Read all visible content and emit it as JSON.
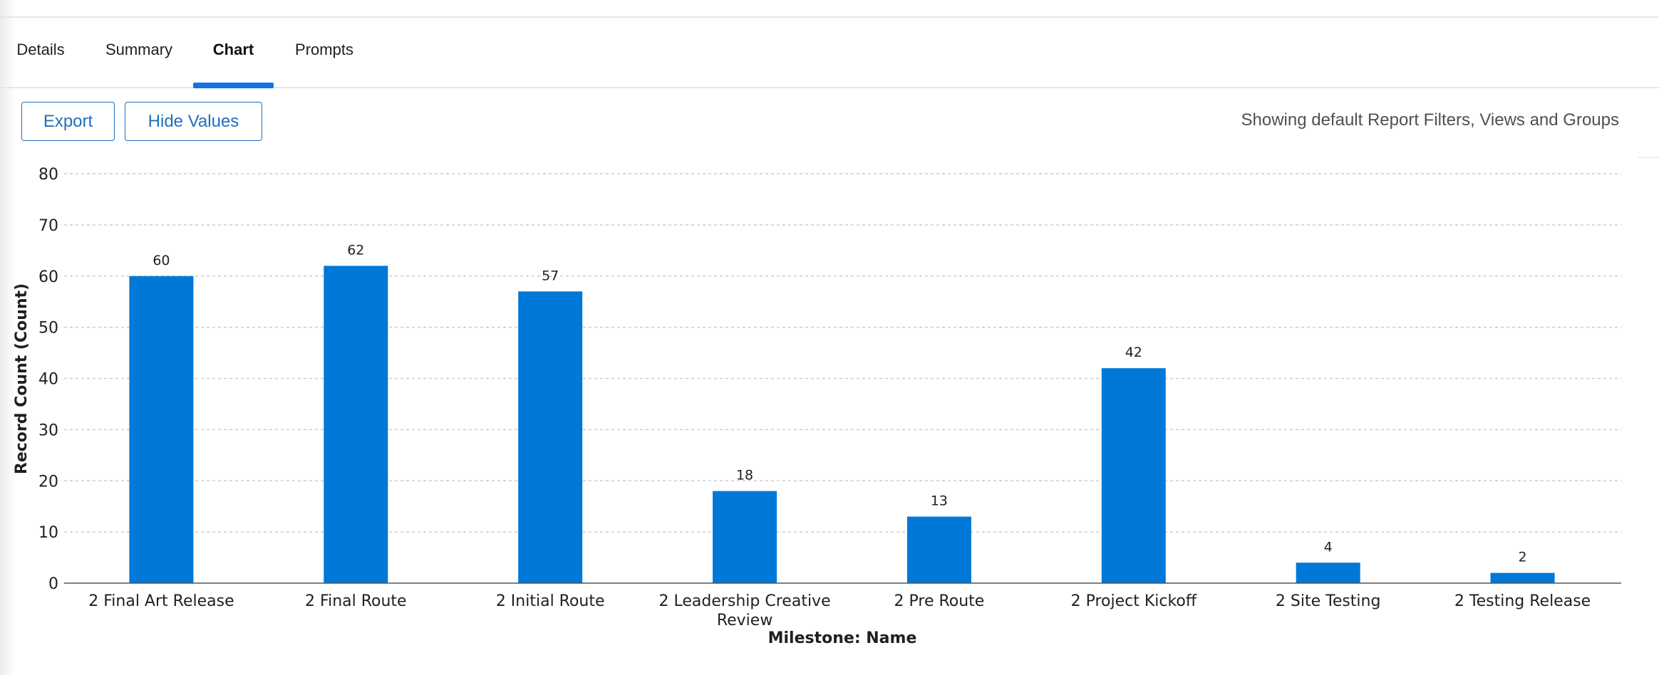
{
  "tabs": [
    {
      "label": "Details",
      "active": false
    },
    {
      "label": "Summary",
      "active": false
    },
    {
      "label": "Chart",
      "active": true
    },
    {
      "label": "Prompts",
      "active": false
    }
  ],
  "toolbar": {
    "export_label": "Export",
    "hide_values_label": "Hide Values",
    "filter_note": "Showing default Report Filters, Views and Groups"
  },
  "colors": {
    "bar": "#0078d7",
    "accent": "#1473e6",
    "button_border": "#1f6fbf",
    "gridline": "#cccccc"
  },
  "chart_data": {
    "type": "bar",
    "categories": [
      [
        "2 Final Art Release"
      ],
      [
        "2 Final Route"
      ],
      [
        "2 Initial Route"
      ],
      [
        "2 Leadership Creative",
        "Review"
      ],
      [
        "2 Pre Route"
      ],
      [
        "2 Project Kickoff"
      ],
      [
        "2 Site Testing"
      ],
      [
        "2 Testing Release"
      ]
    ],
    "values": [
      60,
      62,
      57,
      18,
      13,
      42,
      4,
      2
    ],
    "show_data_labels": true,
    "xlabel": "Milestone: Name",
    "ylabel": "Record Count (Count)",
    "ylim": [
      0,
      80
    ],
    "yticks": [
      0,
      10,
      20,
      30,
      40,
      50,
      60,
      70,
      80
    ],
    "grid": true,
    "legend": "none"
  }
}
